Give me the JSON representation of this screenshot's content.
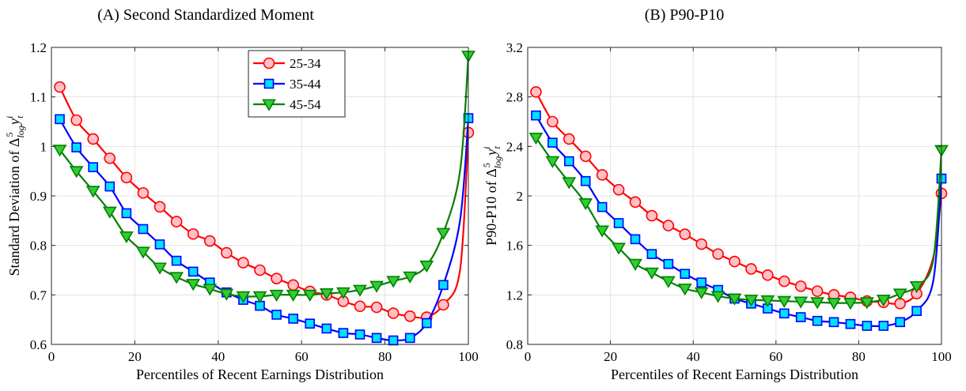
{
  "chart_data": [
    {
      "type": "line",
      "title": "(A) Second Standardized Moment",
      "xlabel": "Percentiles of Recent Earnings Distribution",
      "ylabel": "Standard Deviation of Δ^5_log y^i_t",
      "xlim": [
        0,
        100
      ],
      "ylim": [
        0.6,
        1.2
      ],
      "xticks": [
        0,
        20,
        40,
        60,
        80,
        100
      ],
      "xtick_labels": [
        "0",
        "20",
        "40",
        "60",
        "80",
        "100"
      ],
      "yticks": [
        0.6,
        0.7,
        0.8,
        0.9,
        1.0,
        1.1,
        1.2
      ],
      "ytick_labels": [
        "0.6",
        "0.7",
        "0.8",
        "0.9",
        "1",
        "1.1",
        "1.2"
      ],
      "grid": true,
      "legend_position": "top-center",
      "x": [
        2,
        6,
        10,
        14,
        18,
        22,
        26,
        30,
        34,
        38,
        42,
        46,
        50,
        54,
        58,
        62,
        66,
        70,
        74,
        78,
        82,
        86,
        90,
        94,
        98,
        100
      ],
      "series": [
        {
          "name": "25-34",
          "color": "#ff0000",
          "marker_fill": "#ffc0c6",
          "marker": "circle",
          "values": [
            1.12,
            1.053,
            1.015,
            0.976,
            0.937,
            0.906,
            0.878,
            0.848,
            0.823,
            0.809,
            0.785,
            0.765,
            0.75,
            0.733,
            0.72,
            0.707,
            0.7,
            0.687,
            0.677,
            0.675,
            0.663,
            0.657,
            0.655,
            0.68,
            0.75,
            1.028
          ]
        },
        {
          "name": "35-44",
          "color": "#0000ff",
          "marker_fill": "#00e0ff",
          "marker": "square",
          "values": [
            1.055,
            0.998,
            0.958,
            0.919,
            0.865,
            0.833,
            0.802,
            0.769,
            0.747,
            0.725,
            0.705,
            0.69,
            0.678,
            0.66,
            0.652,
            0.642,
            0.632,
            0.623,
            0.62,
            0.613,
            0.608,
            0.613,
            0.643,
            0.72,
            0.85,
            1.057
          ]
        },
        {
          "name": "45-54",
          "color": "#008000",
          "marker_fill": "#32cd32",
          "marker": "triangle-down",
          "values": [
            0.993,
            0.95,
            0.91,
            0.868,
            0.818,
            0.787,
            0.755,
            0.736,
            0.722,
            0.712,
            0.702,
            0.697,
            0.697,
            0.7,
            0.7,
            0.7,
            0.703,
            0.705,
            0.71,
            0.718,
            0.728,
            0.737,
            0.759,
            0.825,
            0.95,
            1.183
          ]
        }
      ]
    },
    {
      "type": "line",
      "title": "(B) P90-P10",
      "xlabel": "Percentiles of Recent Earnings Distribution",
      "ylabel": "P90-P10 of Δ^5_log y^i_t",
      "xlim": [
        0,
        100
      ],
      "ylim": [
        0.8,
        3.2
      ],
      "xticks": [
        0,
        20,
        40,
        60,
        80,
        100
      ],
      "xtick_labels": [
        "0",
        "20",
        "40",
        "60",
        "80",
        "100"
      ],
      "yticks": [
        0.8,
        1.2,
        1.6,
        2.0,
        2.4,
        2.8,
        3.2
      ],
      "ytick_labels": [
        "0.8",
        "1.2",
        "1.6",
        "2",
        "2.4",
        "2.8",
        "3.2"
      ],
      "grid": true,
      "x": [
        2,
        6,
        10,
        14,
        18,
        22,
        26,
        30,
        34,
        38,
        42,
        46,
        50,
        54,
        58,
        62,
        66,
        70,
        74,
        78,
        82,
        86,
        90,
        94,
        98,
        100
      ],
      "series": [
        {
          "name": "25-34",
          "color": "#ff0000",
          "marker_fill": "#ffc0c6",
          "marker": "circle",
          "values": [
            2.84,
            2.6,
            2.46,
            2.32,
            2.17,
            2.05,
            1.95,
            1.84,
            1.76,
            1.69,
            1.61,
            1.53,
            1.47,
            1.41,
            1.36,
            1.31,
            1.27,
            1.23,
            1.2,
            1.18,
            1.15,
            1.14,
            1.13,
            1.21,
            1.5,
            2.02
          ]
        },
        {
          "name": "35-44",
          "color": "#0000ff",
          "marker_fill": "#00e0ff",
          "marker": "square",
          "values": [
            2.65,
            2.43,
            2.28,
            2.12,
            1.91,
            1.78,
            1.65,
            1.53,
            1.45,
            1.37,
            1.3,
            1.24,
            1.17,
            1.13,
            1.09,
            1.05,
            1.02,
            0.99,
            0.98,
            0.965,
            0.95,
            0.95,
            0.98,
            1.07,
            1.31,
            2.14
          ]
        },
        {
          "name": "45-54",
          "color": "#008000",
          "marker_fill": "#32cd32",
          "marker": "triangle-down",
          "values": [
            2.47,
            2.28,
            2.11,
            1.94,
            1.72,
            1.58,
            1.45,
            1.38,
            1.31,
            1.25,
            1.22,
            1.19,
            1.17,
            1.16,
            1.155,
            1.15,
            1.145,
            1.14,
            1.135,
            1.135,
            1.14,
            1.16,
            1.21,
            1.27,
            1.48,
            2.37
          ]
        }
      ]
    }
  ]
}
